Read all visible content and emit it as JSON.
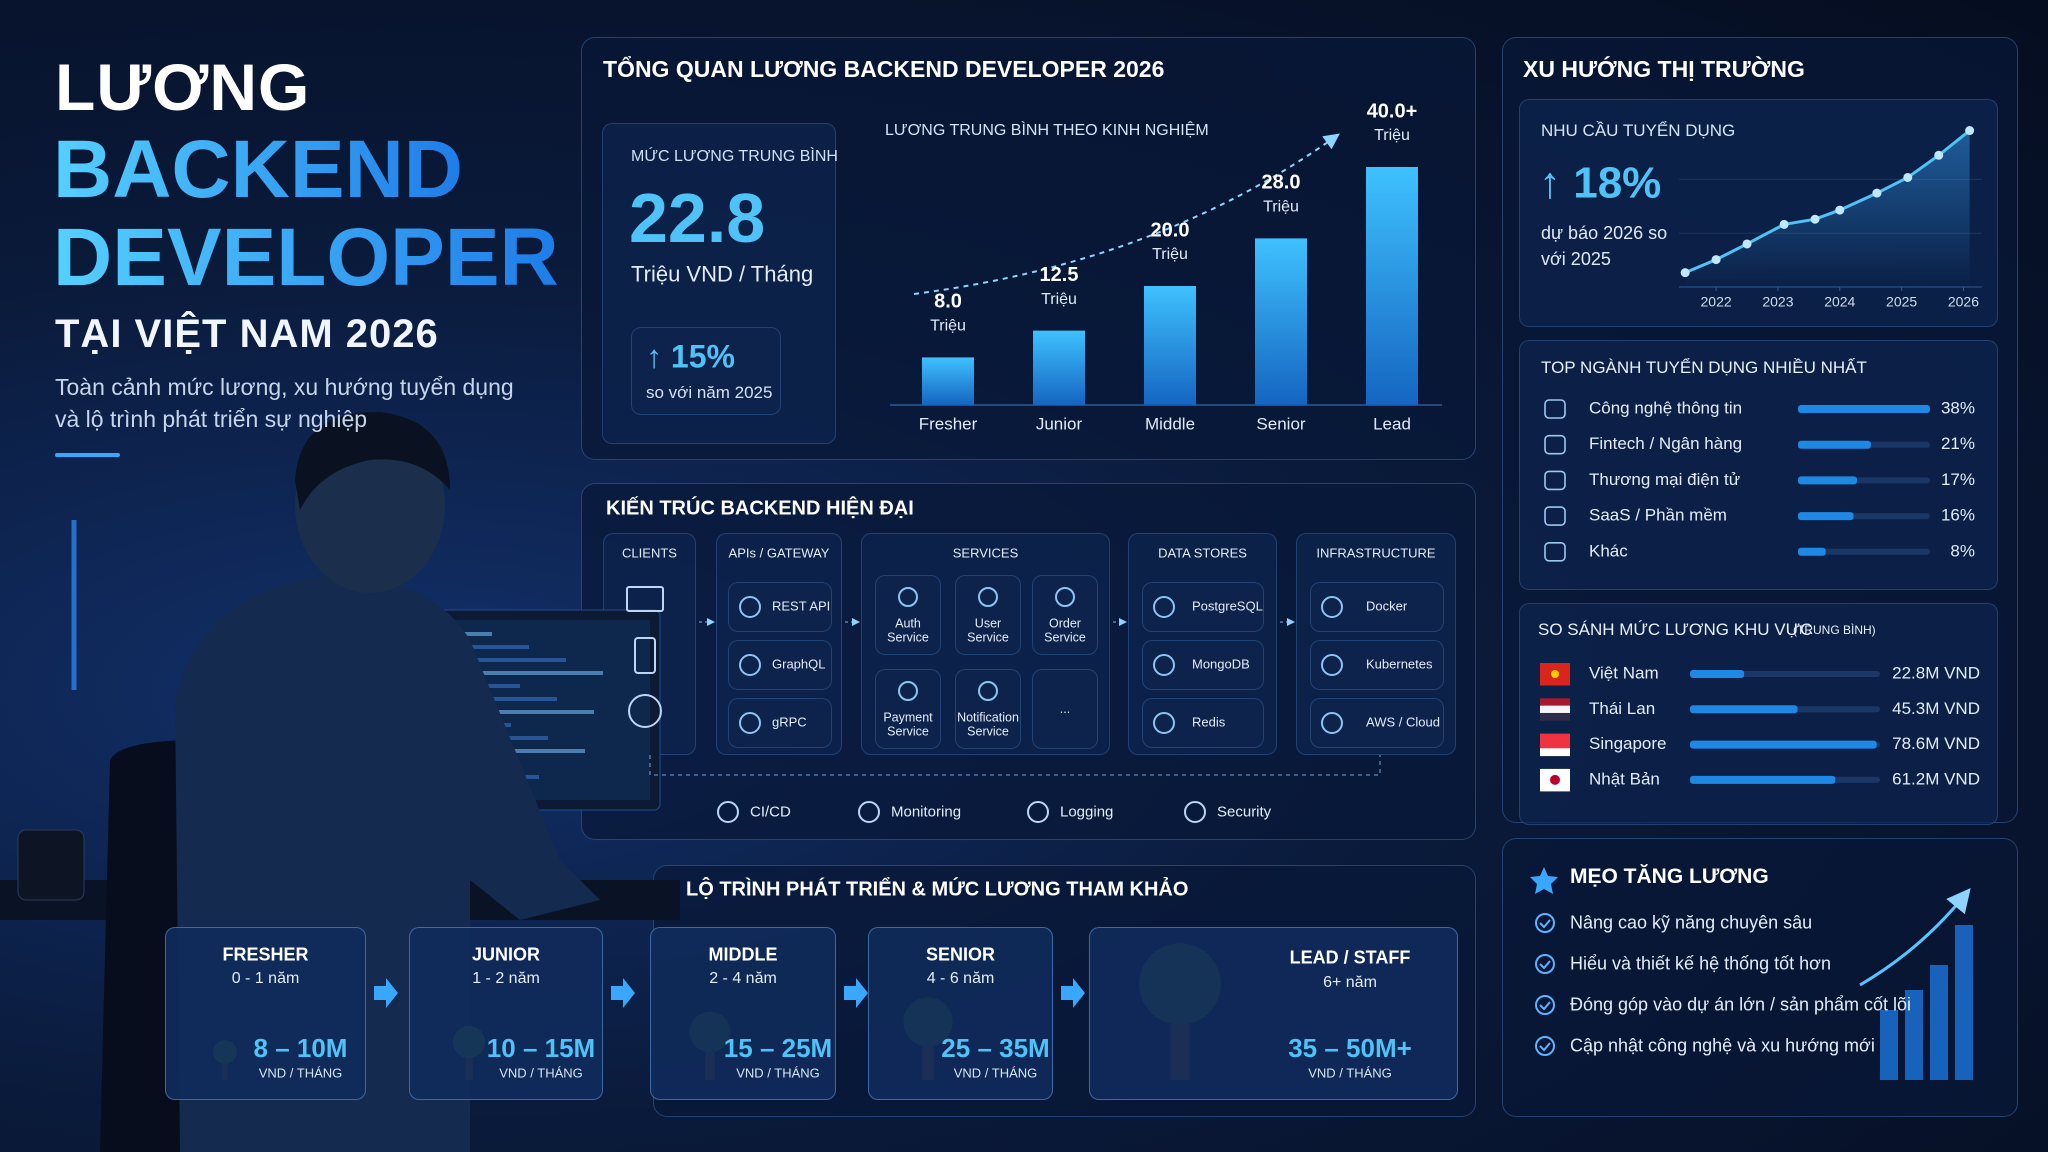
{
  "hero": {
    "title_1": "LƯƠNG",
    "title_2": "BACKEND",
    "title_3": "DEVELOPER",
    "title_4": "TẠI VIỆT NAM 2026",
    "subtitle": "Toàn cảnh mức lương, xu hướng tuyển dụng và lộ trình phát triển sự nghiệp"
  },
  "overview": {
    "title": "TỔNG QUAN LƯƠNG BACKEND DEVELOPER 2026",
    "average_label": "MỨC LƯƠNG TRUNG BÌNH",
    "average_value": "22.8",
    "average_unit": "Triệu VND / Tháng",
    "growth": "↑ 15%",
    "growth_note": "so với năm 2025"
  },
  "market": {
    "title": "XU HƯỚNG THỊ TRƯỜNG"
  },
  "chart_data": [
    {
      "type": "bar",
      "title": "LƯƠNG TRUNG BÌNH THEO KINH NGHIỆM",
      "categories": [
        "Fresher",
        "Junior",
        "Middle",
        "Senior",
        "Lead"
      ],
      "values": [
        8,
        12.5,
        20,
        28,
        40
      ],
      "value_labels": [
        "8.0",
        "12.5",
        "20.0",
        "28.0",
        "40.0+"
      ],
      "value_unit": "Triệu",
      "color": "#1e88e5"
    },
    {
      "type": "line",
      "title": "NHU CẦU TUYỂN DỤNG",
      "highlight": "↑ 18%",
      "note": "dự báo 2026 so với 2025",
      "x": [
        2021.5,
        2022,
        2022.5,
        2023.1,
        2023.6,
        2024,
        2024.6,
        2025.1,
        2025.6,
        2026.1
      ],
      "values": [
        11,
        21,
        33,
        48,
        52,
        59,
        72,
        84,
        101,
        120
      ],
      "xlim": [
        2021.4,
        2026.3
      ],
      "xticks": [
        2022,
        2023,
        2024,
        2025,
        2026
      ],
      "ylim": [
        0,
        125
      ],
      "color": "#4fc3f7"
    },
    {
      "type": "hbar",
      "title": "TOP NGÀNH TUYỂN DỤNG NHIỀU NHẤT",
      "categories": [
        "Công nghệ thông tin",
        "Fintech / Ngân hàng",
        "Thương mại điện tử",
        "SaaS / Phần mềm",
        "Khác"
      ],
      "values": [
        38,
        21,
        17,
        16,
        8
      ],
      "value_labels": [
        "38%",
        "21%",
        "17%",
        "16%",
        "8%"
      ],
      "xlim": [
        0,
        38
      ],
      "color": "#1e88e5"
    },
    {
      "type": "hbar",
      "title": "SO SÁNH MỨC LƯƠNG KHU VỰC",
      "subtitle": "(TRUNG BÌNH)",
      "categories": [
        "Việt Nam",
        "Thái Lan",
        "Singapore",
        "Nhật Bản"
      ],
      "values": [
        22.8,
        45.3,
        78.6,
        61.2
      ],
      "value_labels": [
        "22.8M VND",
        "45.3M VND",
        "78.6M VND",
        "61.2M VND"
      ],
      "xlim": [
        0,
        80
      ],
      "color": "#1e88e5"
    }
  ],
  "architecture": {
    "title": "KIẾN TRÚC BACKEND HIỆN ĐẠI",
    "columns": [
      {
        "title": "CLIENTS"
      },
      {
        "title": "APIs / GATEWAY",
        "items": [
          "REST API",
          "GraphQL",
          "gRPC"
        ]
      },
      {
        "title": "SERVICES",
        "items": [
          "Auth Service",
          "User Service",
          "Order Service",
          "Payment Service",
          "Notification Service",
          "..."
        ]
      },
      {
        "title": "DATA STORES",
        "items": [
          "PostgreSQL",
          "MongoDB",
          "Redis"
        ]
      },
      {
        "title": "INFRASTRUCTURE",
        "items": [
          "Docker",
          "Kubernetes",
          "AWS / Cloud"
        ]
      }
    ],
    "footer": [
      "CI/CD",
      "Monitoring",
      "Logging",
      "Security"
    ]
  },
  "roadmap": {
    "title": "LỘ TRÌNH PHÁT TRIỂN & MỨC LƯƠNG THAM KHẢO",
    "stages": [
      {
        "level": "FRESHER",
        "years": "0 - 1 năm",
        "salary": "8 – 10M",
        "unit": "VND / THÁNG"
      },
      {
        "level": "JUNIOR",
        "years": "1 - 2 năm",
        "salary": "10 – 15M",
        "unit": "VND / THÁNG"
      },
      {
        "level": "MIDDLE",
        "years": "2 - 4 năm",
        "salary": "15 – 25M",
        "unit": "VND / THÁNG"
      },
      {
        "level": "SENIOR",
        "years": "4 - 6 năm",
        "salary": "25 – 35M",
        "unit": "VND / THÁNG"
      },
      {
        "level": "LEAD / STAFF",
        "years": "6+ năm",
        "salary": "35 – 50M+",
        "unit": "VND / THÁNG"
      }
    ]
  },
  "tips": {
    "title": "MẸO TĂNG LƯƠNG",
    "items": [
      "Nâng cao kỹ năng chuyên sâu",
      "Hiểu và thiết kế hệ thống tốt hơn",
      "Đóng góp vào dự án lớn / sản phẩm cốt lõi",
      "Cập nhật công nghệ và xu hướng mới"
    ]
  }
}
